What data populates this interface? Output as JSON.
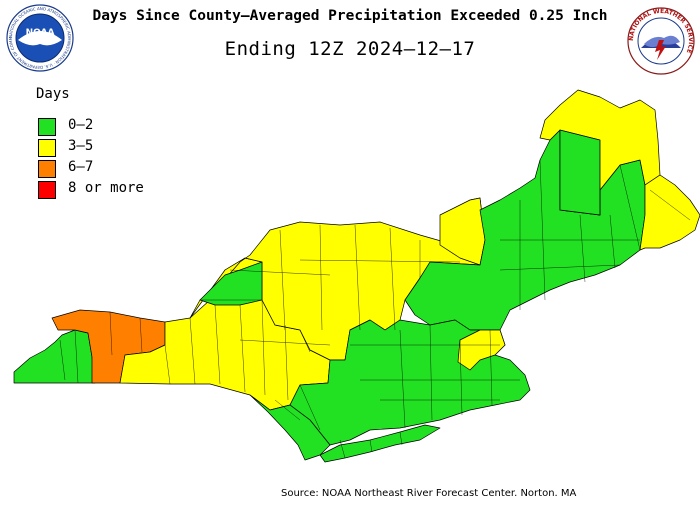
{
  "title": "Days Since County–Averaged Precipitation Exceeded 0.25 Inch",
  "subtitle": "Ending 12Z 2024–12–17",
  "legend": {
    "title": "Days",
    "items": [
      {
        "label": "0–2",
        "color": "#22e022"
      },
      {
        "label": "3–5",
        "color": "#ffff00"
      },
      {
        "label": "6–7",
        "color": "#ff8000"
      },
      {
        "label": "8 or more",
        "color": "#ff0000"
      }
    ]
  },
  "logos": {
    "left": {
      "name": "noaa-logo",
      "text": "NOAA",
      "ring_text": "NATIONAL OCEANIC AND ATMOSPHERIC ADMINISTRATION · U.S. DEPARTMENT OF COMMERCE"
    },
    "right": {
      "name": "nws-logo",
      "ring_text": "NATIONAL WEATHER SERVICE"
    }
  },
  "map": {
    "region": "Northeast River Forecast Center service area",
    "regions": [
      {
        "name": "western-ny-lake-erie-shore",
        "category": "0–2"
      },
      {
        "name": "western-ny-orange-band",
        "category": "6–7"
      },
      {
        "name": "western-ny-interior",
        "category": "3–5"
      },
      {
        "name": "central-ny-finger-lakes",
        "category": "3–5"
      },
      {
        "name": "st-lawrence-valley-green",
        "category": "0–2"
      },
      {
        "name": "adirondacks-east-ny",
        "category": "3–5"
      },
      {
        "name": "vermont-nh",
        "category": "0–2"
      },
      {
        "name": "northern-maine",
        "category": "3–5"
      },
      {
        "name": "central-maine-green",
        "category": "0–2"
      },
      {
        "name": "downeast-maine",
        "category": "3–5"
      },
      {
        "name": "southern-new-england",
        "category": "0–2"
      },
      {
        "name": "boston-area",
        "category": "3–5"
      },
      {
        "name": "hudson-valley-nyc",
        "category": "0–2"
      },
      {
        "name": "long-island",
        "category": "0–2"
      }
    ]
  },
  "source": "Source: NOAA Northeast River Forecast Center. Norton. MA"
}
